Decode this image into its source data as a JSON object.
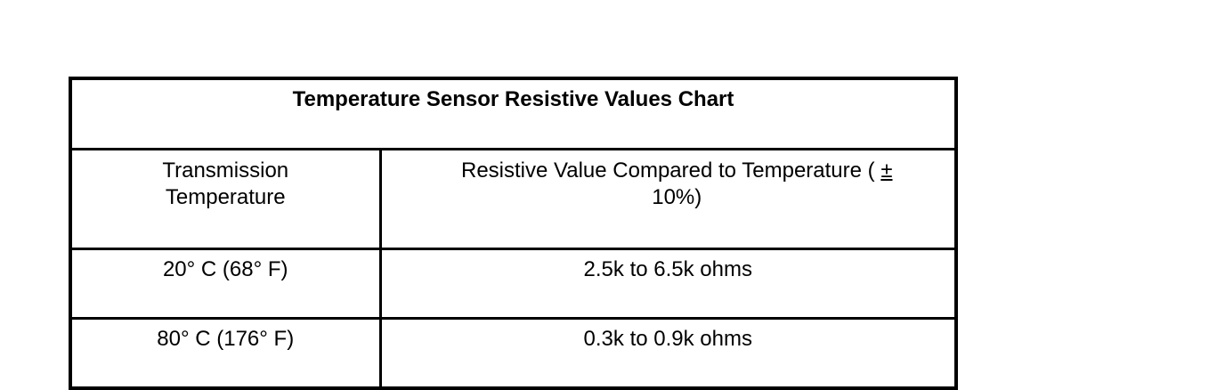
{
  "table": {
    "title": "Temperature Sensor Resistive Values Chart",
    "headers": {
      "temperature_line1": "Transmission",
      "temperature_line2": "Temperature",
      "resistance_line1": "Resistive Value Compared to Temperature (",
      "resistance_pm": "±",
      "resistance_line2": "10%)"
    },
    "rows": [
      {
        "temperature": "20° C (68° F)",
        "resistance": "2.5k to 6.5k ohms"
      },
      {
        "temperature": "80° C (176° F)",
        "resistance": "0.3k to 0.9k ohms"
      }
    ]
  }
}
